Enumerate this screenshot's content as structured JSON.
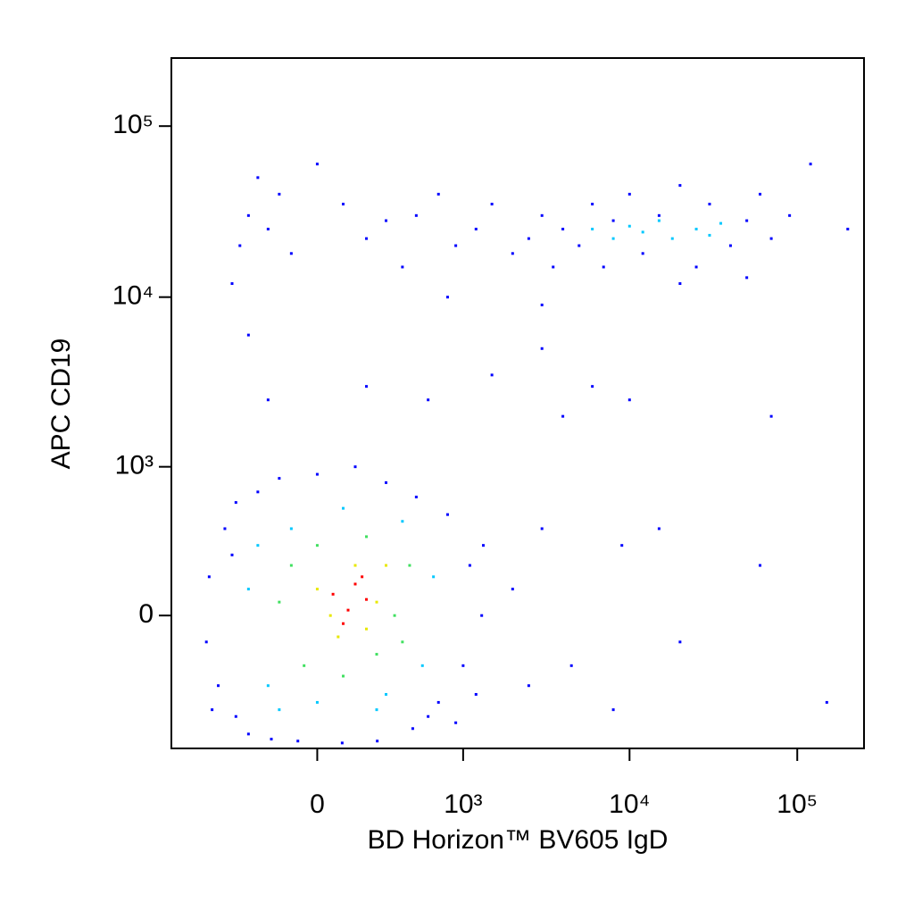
{
  "chart_data": {
    "type": "scatter",
    "xlabel": "BD Horizon™ BV605 IgD",
    "ylabel": "APC CD19",
    "xlim": [
      -1000,
      250000
    ],
    "ylim": [
      -800,
      250000
    ],
    "xticks": [
      0,
      {
        "value": 1000,
        "label": "10³"
      },
      {
        "value": 10000,
        "label": "10⁴"
      },
      {
        "value": 100000,
        "label": "10⁵"
      }
    ],
    "yticks": [
      0,
      {
        "value": 1000,
        "label": "10³"
      },
      {
        "value": 10000,
        "label": "10⁴"
      },
      {
        "value": 100000,
        "label": "10⁵"
      }
    ],
    "series": [
      {
        "color": "#0000ff",
        "x": [
          -575,
          -500,
          -450,
          -375,
          -375,
          -300,
          -250,
          -185,
          -150,
          -74,
          0,
          96,
          150,
          253,
          300,
          473,
          500,
          700,
          800,
          1000,
          1100,
          1300,
          1330,
          -600,
          -550,
          1200,
          900,
          -400,
          600,
          2000,
          2500,
          3000,
          4500,
          9000,
          15000,
          60000,
          150000,
          8000,
          20000,
          -200,
          200,
          600,
          1500,
          3000,
          4000,
          6000,
          10000,
          70000,
          -300,
          -400,
          -350,
          -300,
          -200,
          -150,
          -100,
          0,
          100,
          200,
          300,
          400,
          500,
          700,
          900,
          1200,
          1500,
          2000,
          2500,
          3000,
          3500,
          4000,
          5000,
          6000,
          7000,
          8000,
          10000,
          12000,
          15000,
          20000,
          25000,
          30000,
          40000,
          50000,
          60000,
          70000,
          90000,
          120000,
          200000,
          -250,
          800,
          3000,
          20000,
          50000
        ],
        "values": [
          150,
          -300,
          400,
          -500,
          600,
          -650,
          700,
          -700,
          850,
          -720,
          900,
          -740,
          1000,
          -720,
          800,
          -600,
          650,
          -400,
          500,
          -200,
          200,
          0,
          300,
          -100,
          -450,
          -350,
          -550,
          250,
          -500,
          100,
          -300,
          400,
          -200,
          300,
          400,
          200,
          -400,
          -450,
          -100,
          2500,
          3000,
          2500,
          3500,
          5000,
          2000,
          3000,
          2500,
          2000,
          6000,
          12000,
          20000,
          30000,
          25000,
          40000,
          18000,
          60000,
          35000,
          22000,
          28000,
          15000,
          30000,
          40000,
          20000,
          25000,
          35000,
          18000,
          22000,
          30000,
          15000,
          25000,
          20000,
          35000,
          15000,
          28000,
          40000,
          18000,
          30000,
          45000,
          15000,
          35000,
          20000,
          28000,
          40000,
          22000,
          30000,
          60000,
          25000,
          50000,
          10000,
          9000,
          12000,
          13000
        ]
      },
      {
        "color": "#00c8ff",
        "x": [
          6000,
          8000,
          10000,
          12000,
          15000,
          18000,
          25000,
          30000,
          35000,
          -300,
          -200,
          -100,
          0,
          100,
          250,
          400,
          550,
          650,
          -250,
          300,
          -150
        ],
        "values": [
          25000,
          22000,
          26000,
          24000,
          28000,
          22000,
          25000,
          23000,
          27000,
          100,
          -300,
          400,
          -400,
          550,
          -450,
          450,
          -200,
          150,
          300,
          -350,
          -450
        ]
      },
      {
        "color": "#40e060",
        "x": [
          -150,
          -50,
          0,
          100,
          200,
          350,
          450,
          -100,
          250,
          400
        ],
        "values": [
          50,
          -200,
          300,
          -250,
          350,
          0,
          200,
          200,
          -150,
          -100
        ]
      },
      {
        "color": "#e8e800",
        "x": [
          0,
          80,
          150,
          250,
          300,
          50,
          200
        ],
        "values": [
          100,
          -80,
          200,
          50,
          200,
          0,
          -50
        ]
      },
      {
        "color": "#ff0000",
        "x": [
          60,
          120,
          150,
          200,
          100,
          180
        ],
        "values": [
          80,
          20,
          120,
          60,
          -30,
          150
        ]
      }
    ]
  }
}
